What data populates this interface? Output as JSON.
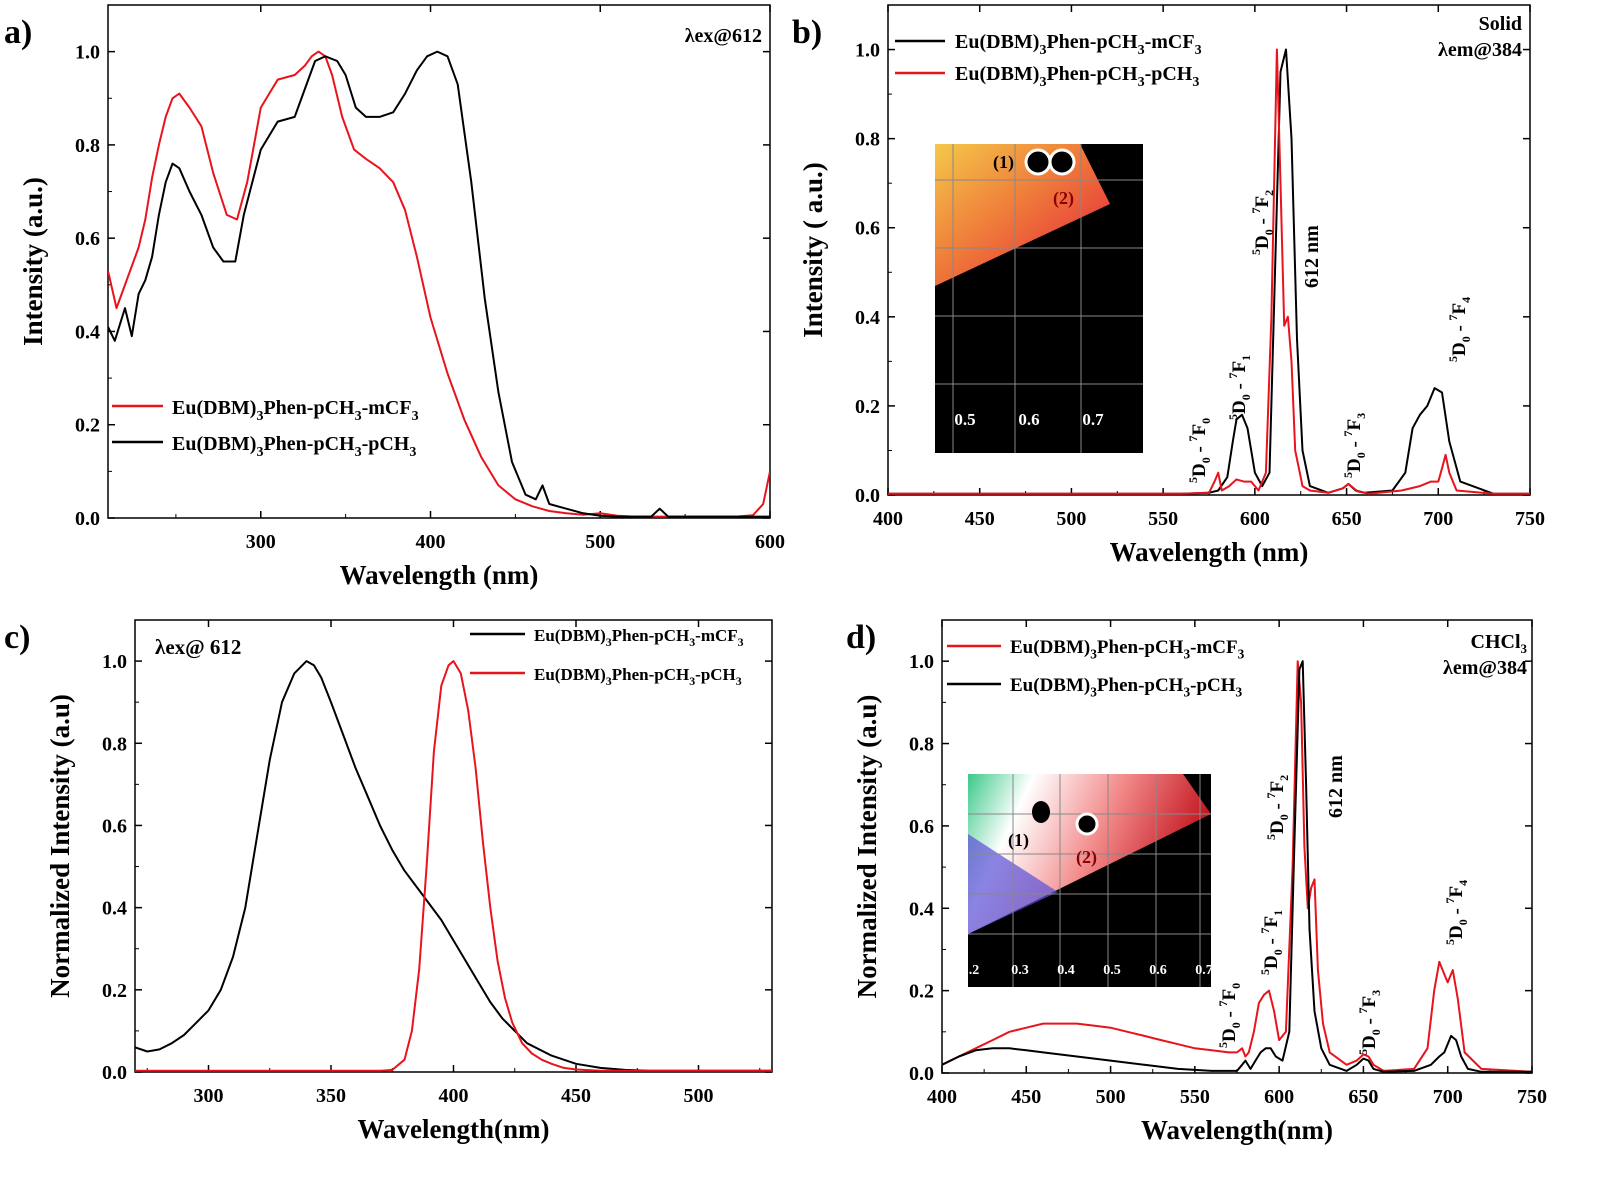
{
  "colors": {
    "black": "#000000",
    "red": "#e8141c"
  },
  "chart_data": [
    {
      "panel": "a)",
      "type": "line",
      "xlabel": "Wavelength (nm)",
      "ylabel": "Intensity (a.u.)",
      "xlim": [
        210,
        600
      ],
      "ylim": [
        0,
        1.1
      ],
      "xticks": [
        300,
        400,
        500,
        600
      ],
      "yticks": [
        0.0,
        0.2,
        0.4,
        0.6,
        0.8,
        1.0
      ],
      "annotation": "λex@612",
      "legend": [
        {
          "label": "Eu(DBM)",
          "sub": "3",
          "label2": "Phen-pCH",
          "sub2": "3",
          "label3": "-mCF",
          "sub3": "3",
          "color": "red"
        },
        {
          "label": "Eu(DBM)",
          "sub": "3",
          "label2": "Phen-pCH",
          "sub2": "3",
          "label3": "-pCH",
          "sub3": "3",
          "color": "black"
        }
      ],
      "series": [
        {
          "color": "red",
          "x": [
            210,
            215,
            222,
            228,
            232,
            236,
            240,
            244,
            248,
            252,
            258,
            265,
            272,
            280,
            286,
            292,
            300,
            310,
            320,
            326,
            330,
            334,
            338,
            342,
            348,
            355,
            362,
            370,
            378,
            385,
            392,
            400,
            410,
            420,
            430,
            440,
            450,
            460,
            470,
            480,
            490,
            500,
            510,
            520,
            530,
            540,
            560,
            580,
            590,
            596,
            600
          ],
          "y": [
            0.53,
            0.45,
            0.52,
            0.58,
            0.64,
            0.73,
            0.8,
            0.86,
            0.9,
            0.91,
            0.88,
            0.84,
            0.74,
            0.65,
            0.64,
            0.72,
            0.88,
            0.94,
            0.95,
            0.97,
            0.99,
            1.0,
            0.99,
            0.95,
            0.86,
            0.79,
            0.77,
            0.75,
            0.72,
            0.66,
            0.56,
            0.43,
            0.31,
            0.21,
            0.13,
            0.07,
            0.04,
            0.025,
            0.015,
            0.01,
            0.007,
            0.01,
            0.005,
            0.003,
            0.003,
            0.003,
            0.003,
            0.003,
            0.006,
            0.03,
            0.1
          ]
        },
        {
          "color": "black",
          "x": [
            210,
            214,
            220,
            224,
            228,
            232,
            236,
            240,
            244,
            248,
            252,
            258,
            265,
            272,
            278,
            285,
            290,
            300,
            310,
            320,
            326,
            332,
            338,
            345,
            350,
            356,
            362,
            370,
            378,
            385,
            392,
            398,
            404,
            410,
            416,
            424,
            432,
            440,
            448,
            456,
            462,
            466,
            470,
            480,
            490,
            500,
            510,
            520,
            530,
            535,
            540,
            560,
            580,
            600
          ],
          "y": [
            0.41,
            0.38,
            0.45,
            0.39,
            0.48,
            0.51,
            0.56,
            0.65,
            0.72,
            0.76,
            0.75,
            0.7,
            0.65,
            0.58,
            0.55,
            0.55,
            0.65,
            0.79,
            0.85,
            0.86,
            0.92,
            0.98,
            0.99,
            0.98,
            0.95,
            0.88,
            0.86,
            0.86,
            0.87,
            0.91,
            0.96,
            0.99,
            1.0,
            0.99,
            0.93,
            0.72,
            0.47,
            0.27,
            0.12,
            0.05,
            0.04,
            0.07,
            0.03,
            0.02,
            0.01,
            0.005,
            0.003,
            0.003,
            0.003,
            0.02,
            0.003,
            0.003,
            0.003,
            0.003
          ]
        }
      ]
    },
    {
      "panel": "b)",
      "type": "line",
      "xlabel": "Wavelength (nm)",
      "ylabel": "Intensity ( a.u.)",
      "xlim": [
        400,
        750
      ],
      "ylim": [
        0,
        1.1
      ],
      "xticks": [
        400,
        450,
        500,
        550,
        600,
        650,
        700,
        750
      ],
      "yticks": [
        0.0,
        0.2,
        0.4,
        0.6,
        0.8,
        1.0
      ],
      "annotation_lines": [
        "Solid",
        "λem@384"
      ],
      "peak_label": "612 nm",
      "transitions": [
        "7F0",
        "7F1",
        "7F2",
        "7F3",
        "7F4"
      ],
      "legend": [
        {
          "label": "Eu(DBM)",
          "sub": "3",
          "label2": "Phen-pCH",
          "sub2": "3",
          "label3": "-mCF",
          "sub3": "3",
          "color": "black"
        },
        {
          "label": "Eu(DBM)",
          "sub": "3",
          "label2": "Phen-pCH",
          "sub2": "3",
          "label3": "-pCH",
          "sub3": "3",
          "color": "red"
        }
      ],
      "inset": {
        "ticks": [
          "0.5",
          "0.6",
          "0.7"
        ],
        "points": [
          "(1)",
          "(2)"
        ]
      },
      "series": [
        {
          "color": "black",
          "x": [
            400,
            500,
            560,
            575,
            580,
            585,
            588,
            590,
            593,
            596,
            600,
            604,
            608,
            611,
            614,
            617,
            620,
            623,
            626,
            630,
            640,
            648,
            651,
            655,
            660,
            675,
            682,
            686,
            690,
            694,
            698,
            702,
            706,
            712,
            730,
            750
          ],
          "y": [
            0.003,
            0.003,
            0.003,
            0.005,
            0.01,
            0.04,
            0.12,
            0.17,
            0.18,
            0.15,
            0.05,
            0.02,
            0.05,
            0.5,
            0.95,
            1.0,
            0.8,
            0.35,
            0.1,
            0.02,
            0.005,
            0.015,
            0.025,
            0.01,
            0.005,
            0.01,
            0.05,
            0.15,
            0.18,
            0.2,
            0.24,
            0.23,
            0.12,
            0.03,
            0.003,
            0.003
          ]
        },
        {
          "color": "red",
          "x": [
            400,
            500,
            560,
            575,
            578,
            580,
            582,
            586,
            590,
            594,
            598,
            602,
            606,
            609,
            612,
            614,
            616,
            618,
            620,
            622,
            624,
            626,
            630,
            640,
            648,
            651,
            656,
            662,
            680,
            690,
            696,
            700,
            702,
            704,
            706,
            710,
            730,
            750
          ],
          "y": [
            0.003,
            0.003,
            0.003,
            0.005,
            0.03,
            0.05,
            0.01,
            0.02,
            0.035,
            0.03,
            0.03,
            0.01,
            0.05,
            0.4,
            1.0,
            0.7,
            0.38,
            0.4,
            0.3,
            0.1,
            0.06,
            0.02,
            0.01,
            0.005,
            0.015,
            0.025,
            0.008,
            0.003,
            0.01,
            0.02,
            0.03,
            0.03,
            0.06,
            0.09,
            0.05,
            0.01,
            0.003,
            0.003
          ]
        }
      ]
    },
    {
      "panel": "c)",
      "type": "line",
      "xlabel": "Wavelength(nm)",
      "ylabel": "Normalized Intensity (a.u)",
      "xlim": [
        270,
        530
      ],
      "ylim": [
        0,
        1.1
      ],
      "xticks": [
        300,
        350,
        400,
        450,
        500
      ],
      "yticks": [
        0.0,
        0.2,
        0.4,
        0.6,
        0.8,
        1.0
      ],
      "annotation": "λex@ 612",
      "legend": [
        {
          "label": "Eu(DBM)",
          "sub": "3",
          "label2": "Phen-pCH",
          "sub2": "3",
          "label3": "-mCF",
          "sub3": "3",
          "color": "black"
        },
        {
          "label": "Eu(DBM)",
          "sub": "3",
          "label2": "Phen-pCH",
          "sub2": "3",
          "label3": "-pCH",
          "sub3": "3",
          "color": "red"
        }
      ],
      "series": [
        {
          "color": "black",
          "x": [
            270,
            275,
            280,
            285,
            290,
            295,
            300,
            305,
            310,
            315,
            320,
            325,
            330,
            335,
            340,
            343,
            346,
            350,
            355,
            360,
            365,
            370,
            375,
            380,
            385,
            390,
            395,
            400,
            405,
            410,
            415,
            420,
            425,
            430,
            440,
            450,
            460,
            470,
            480,
            490,
            500,
            520,
            530
          ],
          "y": [
            0.06,
            0.05,
            0.055,
            0.07,
            0.09,
            0.12,
            0.15,
            0.2,
            0.28,
            0.4,
            0.58,
            0.76,
            0.9,
            0.97,
            1.0,
            0.99,
            0.96,
            0.9,
            0.82,
            0.74,
            0.67,
            0.6,
            0.54,
            0.49,
            0.45,
            0.41,
            0.37,
            0.32,
            0.27,
            0.22,
            0.17,
            0.13,
            0.1,
            0.07,
            0.04,
            0.02,
            0.01,
            0.005,
            0.003,
            0.003,
            0.003,
            0.003,
            0.003
          ]
        },
        {
          "color": "red",
          "x": [
            270,
            350,
            370,
            375,
            380,
            383,
            386,
            389,
            392,
            395,
            398,
            400,
            403,
            406,
            409,
            412,
            415,
            418,
            421,
            424,
            428,
            432,
            436,
            440,
            445,
            450,
            460,
            480,
            530
          ],
          "y": [
            0.003,
            0.003,
            0.003,
            0.005,
            0.03,
            0.1,
            0.25,
            0.5,
            0.78,
            0.94,
            0.99,
            1.0,
            0.97,
            0.88,
            0.74,
            0.56,
            0.4,
            0.27,
            0.18,
            0.12,
            0.07,
            0.045,
            0.03,
            0.02,
            0.01,
            0.006,
            0.003,
            0.003,
            0.003
          ]
        }
      ]
    },
    {
      "panel": "d)",
      "type": "line",
      "xlabel": "Wavelength(nm)",
      "ylabel": "Normalized Intensity (a.u)",
      "xlim": [
        400,
        750
      ],
      "ylim": [
        0,
        1.1
      ],
      "xticks": [
        400,
        450,
        500,
        550,
        600,
        650,
        700,
        750
      ],
      "yticks": [
        0.0,
        0.2,
        0.4,
        0.6,
        0.8,
        1.0
      ],
      "annotation_lines": [
        "CHCl",
        "λem@384"
      ],
      "annotation_sub": "3",
      "peak_label": "612 nm",
      "transitions": [
        "7F0",
        "7F1",
        "7F2",
        "7F3",
        "7F4"
      ],
      "legend": [
        {
          "label": "Eu(DBM)",
          "sub": "3",
          "label2": "Phen-pCH",
          "sub2": "3",
          "label3": "-mCF",
          "sub3": "3",
          "color": "red"
        },
        {
          "label": "Eu(DBM)",
          "sub": "3",
          "label2": "Phen-pCH",
          "sub2": "3",
          "label3": "-pCH",
          "sub3": "3",
          "color": "black"
        }
      ],
      "inset": {
        "ticks": [
          ".2",
          "0.3",
          "0.4",
          "0.5",
          "0.6",
          "0.7"
        ],
        "points": [
          "(1)",
          "(2)"
        ]
      },
      "series": [
        {
          "color": "red",
          "x": [
            400,
            410,
            420,
            430,
            440,
            450,
            460,
            470,
            480,
            490,
            500,
            510,
            520,
            530,
            540,
            550,
            560,
            570,
            575,
            578,
            580,
            582,
            585,
            588,
            591,
            594,
            597,
            600,
            604,
            608,
            611,
            613,
            615,
            617,
            619,
            621,
            623,
            626,
            630,
            640,
            646,
            650,
            653,
            656,
            662,
            680,
            688,
            692,
            695,
            698,
            700,
            703,
            706,
            710,
            720,
            750
          ],
          "y": [
            0.02,
            0.04,
            0.06,
            0.08,
            0.1,
            0.11,
            0.12,
            0.12,
            0.12,
            0.115,
            0.11,
            0.1,
            0.09,
            0.08,
            0.07,
            0.06,
            0.055,
            0.05,
            0.05,
            0.06,
            0.04,
            0.05,
            0.1,
            0.17,
            0.19,
            0.2,
            0.15,
            0.08,
            0.1,
            0.5,
            1.0,
            0.9,
            0.55,
            0.4,
            0.45,
            0.47,
            0.25,
            0.12,
            0.05,
            0.02,
            0.03,
            0.045,
            0.04,
            0.02,
            0.005,
            0.01,
            0.06,
            0.2,
            0.27,
            0.24,
            0.22,
            0.25,
            0.18,
            0.05,
            0.01,
            0.003
          ]
        },
        {
          "color": "black",
          "x": [
            400,
            405,
            410,
            420,
            430,
            440,
            450,
            460,
            480,
            500,
            520,
            540,
            560,
            575,
            578,
            580,
            583,
            586,
            589,
            592,
            595,
            598,
            602,
            606,
            609,
            612,
            614,
            616,
            618,
            621,
            625,
            630,
            640,
            646,
            650,
            653,
            656,
            662,
            680,
            690,
            695,
            698,
            702,
            705,
            708,
            712,
            720,
            750
          ],
          "y": [
            0.02,
            0.03,
            0.04,
            0.055,
            0.06,
            0.06,
            0.055,
            0.05,
            0.04,
            0.03,
            0.02,
            0.01,
            0.005,
            0.005,
            0.02,
            0.03,
            0.01,
            0.03,
            0.05,
            0.06,
            0.06,
            0.04,
            0.03,
            0.1,
            0.55,
            0.98,
            1.0,
            0.7,
            0.35,
            0.15,
            0.06,
            0.02,
            0.005,
            0.02,
            0.035,
            0.03,
            0.01,
            0.003,
            0.005,
            0.02,
            0.04,
            0.05,
            0.09,
            0.08,
            0.04,
            0.01,
            0.003,
            0.003
          ]
        }
      ]
    }
  ]
}
